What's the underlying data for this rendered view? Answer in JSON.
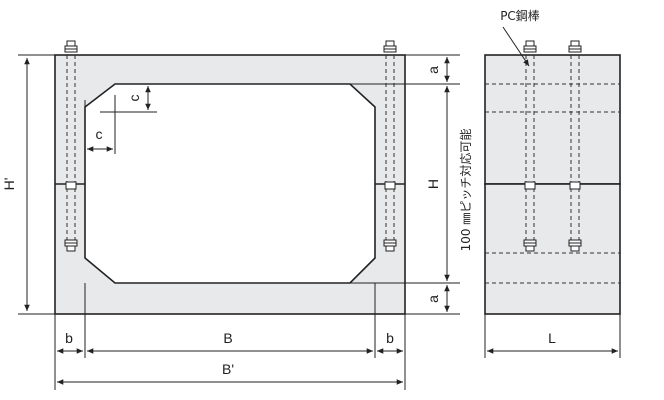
{
  "diagram": {
    "labels": {
      "pc_rod": "PC鋼棒",
      "a_top": "a",
      "a_bottom": "a",
      "c_top": "c",
      "c_left": "c",
      "h_prime": "H'",
      "h": "H",
      "b_left": "b",
      "b_right": "b",
      "b_main": "B",
      "b_prime": "B'",
      "l": "L",
      "pitch": "100 ㎜ピッチ対応可能"
    },
    "colors": {
      "fill": "#e8e9ea",
      "stroke": "#222222",
      "dash": "#333333",
      "bolt": "#ffffff"
    }
  }
}
